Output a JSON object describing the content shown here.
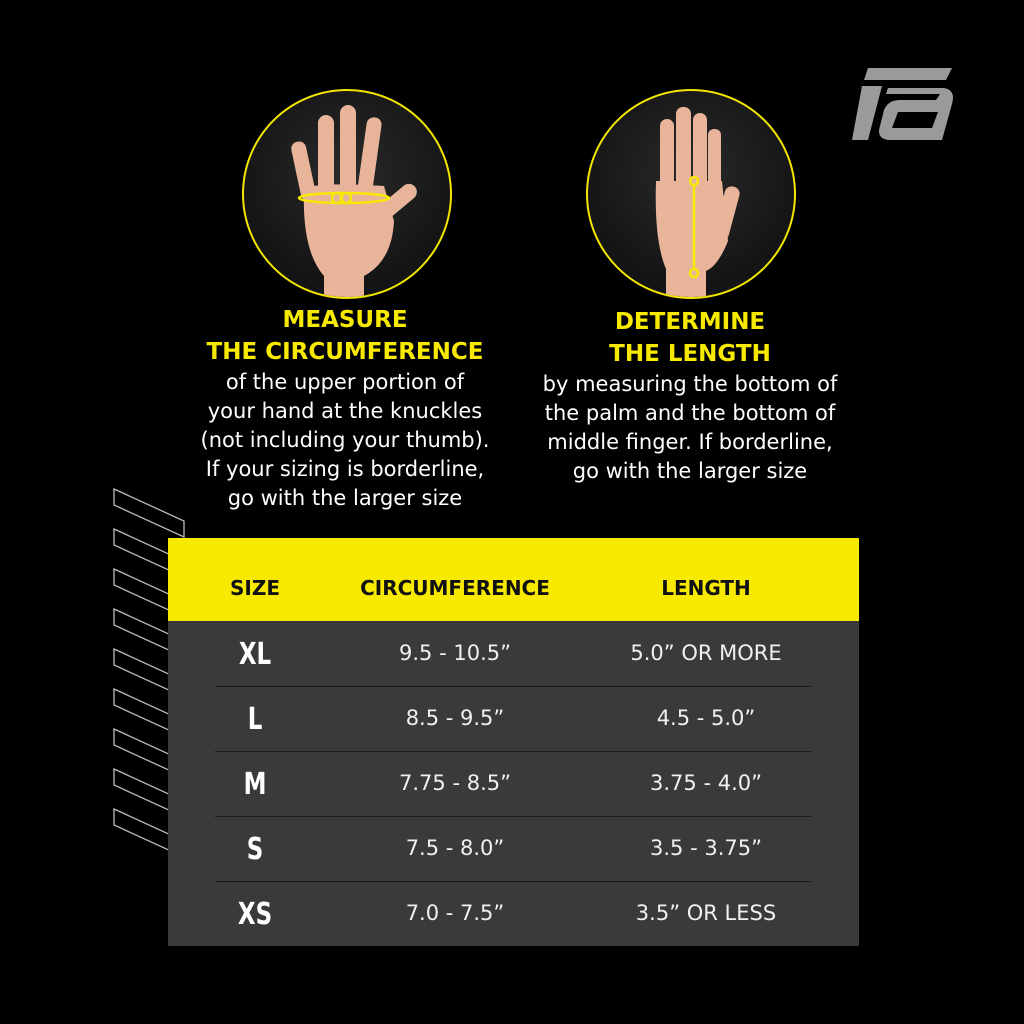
{
  "brand": {
    "logo": "fa-logo"
  },
  "instructions": [
    {
      "heading": [
        "MEASURE",
        "THE CIRCUMFERENCE"
      ],
      "body": [
        "of the upper portion of",
        "your hand at the knuckles",
        "(not including your thumb).",
        "If your sizing is borderline,",
        "go with the larger size"
      ]
    },
    {
      "heading": [
        "DETERMINE",
        "THE LENGTH"
      ],
      "body": [
        "by measuring the bottom of",
        "the palm and the bottom of",
        "middle finger. If borderline,",
        "go with the larger size"
      ]
    }
  ],
  "table": {
    "headers": [
      "SIZE",
      "CIRCUMFERENCE",
      "LENGTH"
    ],
    "rows": [
      {
        "size": "XL",
        "circumference": "9.5 - 10.5”",
        "length": "5.0” OR MORE"
      },
      {
        "size": "L",
        "circumference": "8.5 - 9.5”",
        "length": "4.5 - 5.0”"
      },
      {
        "size": "M",
        "circumference": "7.75 - 8.5”",
        "length": "3.75 - 4.0”"
      },
      {
        "size": "S",
        "circumference": "7.5 - 8.0”",
        "length": "3.5 - 3.75”"
      },
      {
        "size": "XS",
        "circumference": "7.0 - 7.5”",
        "length": "3.5” OR LESS"
      }
    ]
  },
  "colors": {
    "accent": "#f7ea00",
    "table_body": "#3a3a3a",
    "background": "#000000",
    "logo": "#9a9a9a"
  }
}
